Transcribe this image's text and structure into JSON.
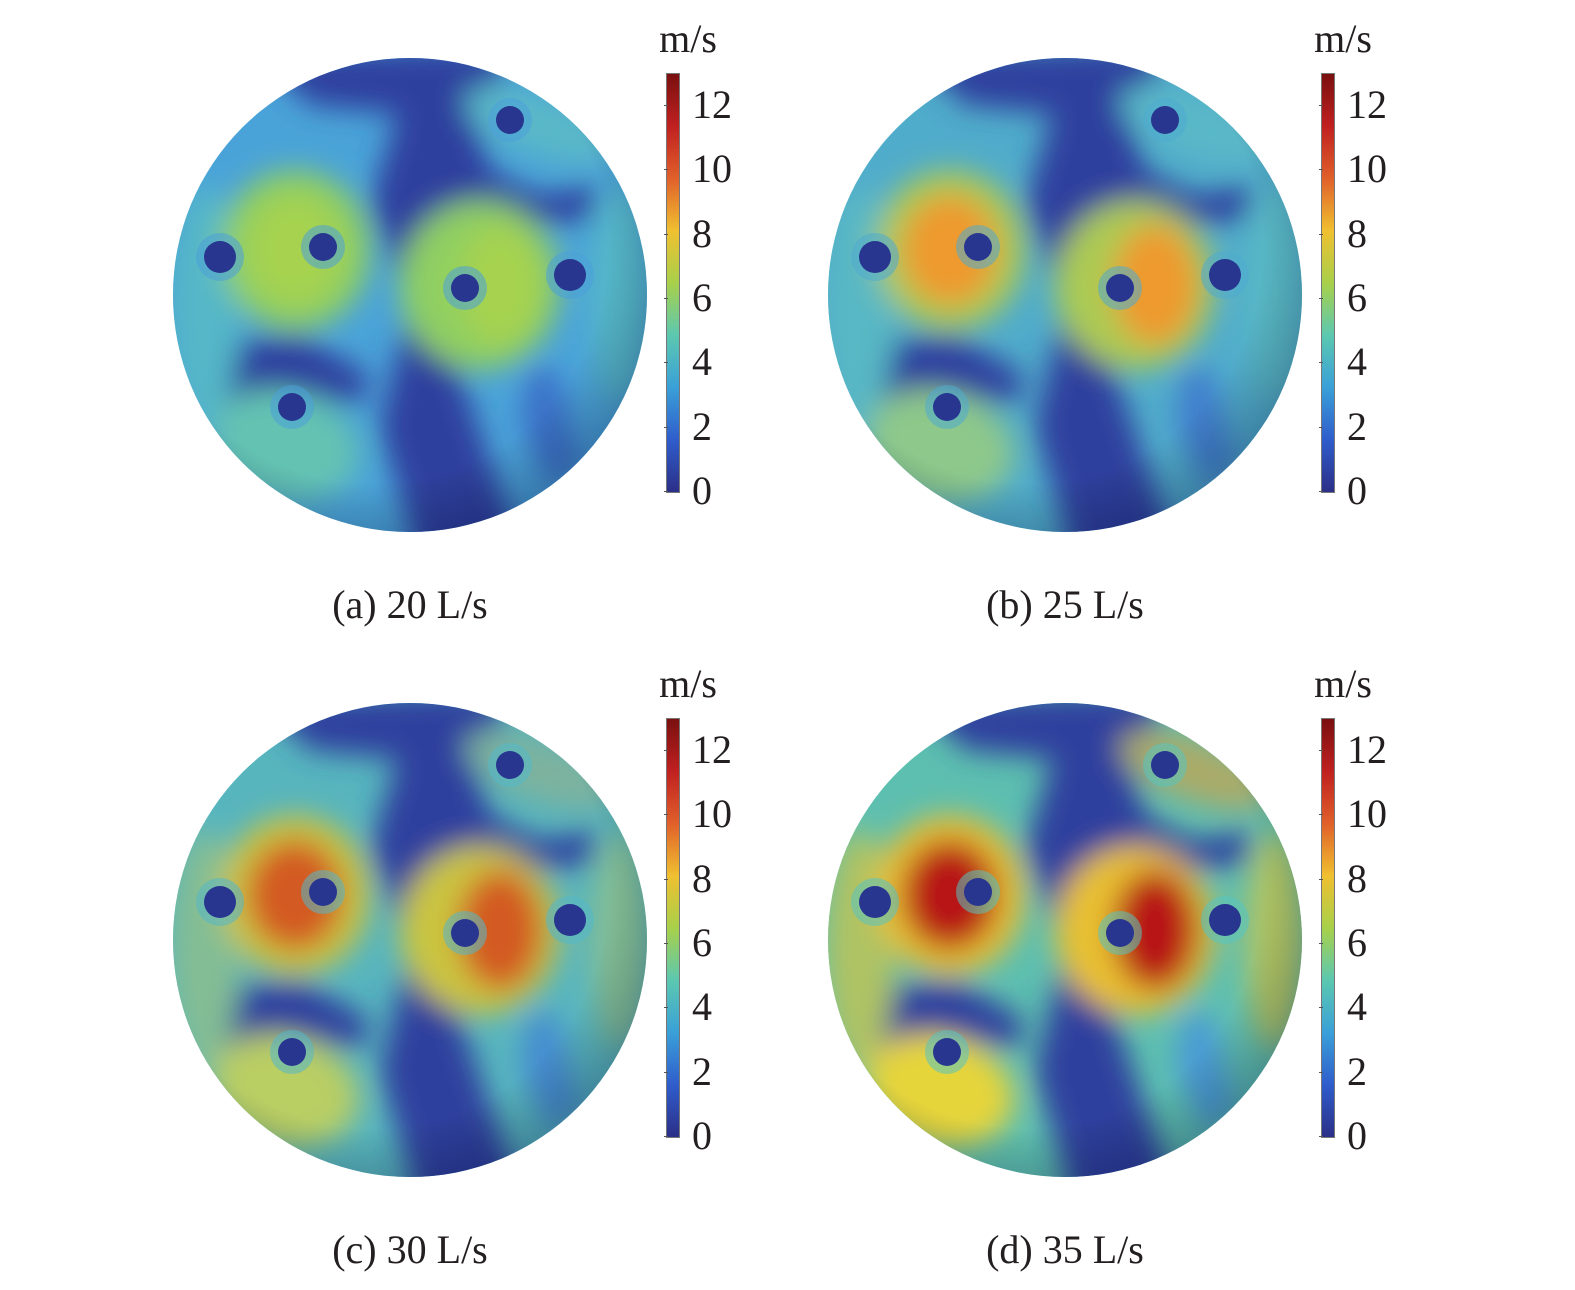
{
  "colorbar": {
    "unit": "m/s",
    "ticks": [
      "12",
      "10",
      "8",
      "6",
      "4",
      "2",
      "0"
    ],
    "tick_values": [
      12,
      10,
      8,
      6,
      4,
      2,
      0
    ],
    "range": [
      0,
      13
    ],
    "colors": [
      "#2b2f87",
      "#2f5dcc",
      "#3aa0d8",
      "#5cc8b0",
      "#a8d04a",
      "#f0c030",
      "#e0602a",
      "#c02020",
      "#7a1010"
    ]
  },
  "panels": [
    {
      "caption": "(a) 20 L/s",
      "level": 0.0
    },
    {
      "caption": "(b) 25 L/s",
      "level": 0.33
    },
    {
      "caption": "(c) 30 L/s",
      "level": 0.66
    },
    {
      "caption": "(d) 35 L/s",
      "level": 1.0
    }
  ]
}
